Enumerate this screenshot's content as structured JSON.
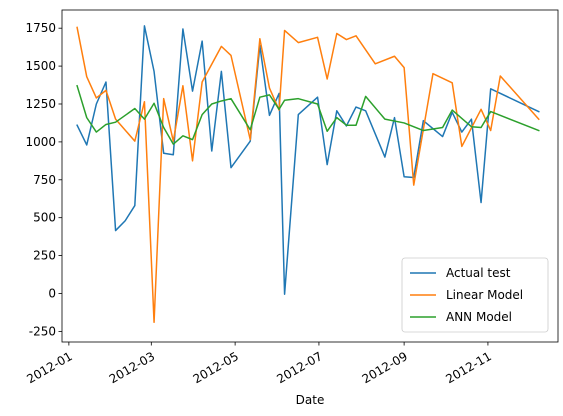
{
  "chart_data": {
    "type": "line",
    "title": "",
    "xlabel": "Date",
    "ylabel": "",
    "xlim": [
      "2011-12-27",
      "2012-12-22"
    ],
    "ylim": [
      -320,
      1870
    ],
    "yticks": [
      -250,
      0,
      250,
      500,
      750,
      1000,
      1250,
      1500,
      1750
    ],
    "xticks": [
      {
        "date": "2012-01-01",
        "label": "2012-01"
      },
      {
        "date": "2012-03-01",
        "label": "2012-03"
      },
      {
        "date": "2012-05-01",
        "label": "2012-05"
      },
      {
        "date": "2012-07-01",
        "label": "2012-07"
      },
      {
        "date": "2012-09-01",
        "label": "2012-09"
      },
      {
        "date": "2012-11-01",
        "label": "2012-11"
      }
    ],
    "grid": false,
    "legend": "lower-right",
    "series": [
      {
        "name": "Actual test",
        "color": "#1f77b4",
        "points": [
          [
            "2012-01-07",
            1110
          ],
          [
            "2012-01-14",
            980
          ],
          [
            "2012-01-21",
            1250
          ],
          [
            "2012-01-28",
            1395
          ],
          [
            "2012-02-04",
            415
          ],
          [
            "2012-02-11",
            480
          ],
          [
            "2012-02-18",
            580
          ],
          [
            "2012-02-25",
            1765
          ],
          [
            "2012-03-03",
            1465
          ],
          [
            "2012-03-10",
            925
          ],
          [
            "2012-03-17",
            915
          ],
          [
            "2012-03-24",
            1745
          ],
          [
            "2012-03-31",
            1335
          ],
          [
            "2012-04-07",
            1665
          ],
          [
            "2012-04-14",
            940
          ],
          [
            "2012-04-21",
            1465
          ],
          [
            "2012-04-28",
            830
          ],
          [
            "2012-05-12",
            1005
          ],
          [
            "2012-05-19",
            1635
          ],
          [
            "2012-05-26",
            1175
          ],
          [
            "2012-06-02",
            1320
          ],
          [
            "2012-06-06",
            -5
          ],
          [
            "2012-06-16",
            1180
          ],
          [
            "2012-06-30",
            1295
          ],
          [
            "2012-07-07",
            850
          ],
          [
            "2012-07-14",
            1205
          ],
          [
            "2012-07-21",
            1105
          ],
          [
            "2012-07-28",
            1230
          ],
          [
            "2012-08-04",
            1205
          ],
          [
            "2012-08-18",
            900
          ],
          [
            "2012-08-25",
            1160
          ],
          [
            "2012-09-01",
            770
          ],
          [
            "2012-09-08",
            765
          ],
          [
            "2012-09-15",
            1140
          ],
          [
            "2012-09-29",
            1035
          ],
          [
            "2012-10-06",
            1195
          ],
          [
            "2012-10-13",
            1065
          ],
          [
            "2012-10-20",
            1150
          ],
          [
            "2012-10-27",
            600
          ],
          [
            "2012-11-03",
            1350
          ],
          [
            "2012-12-08",
            1200
          ]
        ]
      },
      {
        "name": "Linear Model",
        "color": "#ff7f0e",
        "points": [
          [
            "2012-01-07",
            1755
          ],
          [
            "2012-01-14",
            1430
          ],
          [
            "2012-01-21",
            1290
          ],
          [
            "2012-01-28",
            1340
          ],
          [
            "2012-02-04",
            1150
          ],
          [
            "2012-02-18",
            1005
          ],
          [
            "2012-02-25",
            1265
          ],
          [
            "2012-03-03",
            -190
          ],
          [
            "2012-03-10",
            1285
          ],
          [
            "2012-03-17",
            1005
          ],
          [
            "2012-03-24",
            1370
          ],
          [
            "2012-03-31",
            875
          ],
          [
            "2012-04-07",
            1395
          ],
          [
            "2012-04-21",
            1630
          ],
          [
            "2012-04-28",
            1570
          ],
          [
            "2012-05-12",
            1015
          ],
          [
            "2012-05-19",
            1680
          ],
          [
            "2012-05-26",
            1355
          ],
          [
            "2012-06-02",
            1210
          ],
          [
            "2012-06-06",
            1735
          ],
          [
            "2012-06-16",
            1655
          ],
          [
            "2012-06-30",
            1690
          ],
          [
            "2012-07-07",
            1415
          ],
          [
            "2012-07-14",
            1715
          ],
          [
            "2012-07-21",
            1675
          ],
          [
            "2012-07-28",
            1700
          ],
          [
            "2012-08-11",
            1515
          ],
          [
            "2012-08-25",
            1565
          ],
          [
            "2012-09-01",
            1490
          ],
          [
            "2012-09-08",
            715
          ],
          [
            "2012-09-22",
            1450
          ],
          [
            "2012-10-06",
            1390
          ],
          [
            "2012-10-13",
            970
          ],
          [
            "2012-10-27",
            1215
          ],
          [
            "2012-11-03",
            1075
          ],
          [
            "2012-11-10",
            1435
          ],
          [
            "2012-12-08",
            1150
          ]
        ]
      },
      {
        "name": "ANN Model",
        "color": "#2ca02c",
        "points": [
          [
            "2012-01-07",
            1370
          ],
          [
            "2012-01-14",
            1160
          ],
          [
            "2012-01-21",
            1065
          ],
          [
            "2012-01-28",
            1115
          ],
          [
            "2012-02-04",
            1130
          ],
          [
            "2012-02-18",
            1220
          ],
          [
            "2012-02-25",
            1150
          ],
          [
            "2012-03-03",
            1255
          ],
          [
            "2012-03-10",
            1095
          ],
          [
            "2012-03-17",
            985
          ],
          [
            "2012-03-24",
            1040
          ],
          [
            "2012-03-31",
            1015
          ],
          [
            "2012-04-07",
            1180
          ],
          [
            "2012-04-14",
            1250
          ],
          [
            "2012-04-21",
            1270
          ],
          [
            "2012-04-28",
            1285
          ],
          [
            "2012-05-12",
            1080
          ],
          [
            "2012-05-19",
            1295
          ],
          [
            "2012-05-26",
            1310
          ],
          [
            "2012-06-02",
            1215
          ],
          [
            "2012-06-06",
            1275
          ],
          [
            "2012-06-16",
            1285
          ],
          [
            "2012-06-30",
            1250
          ],
          [
            "2012-07-07",
            1070
          ],
          [
            "2012-07-14",
            1160
          ],
          [
            "2012-07-21",
            1110
          ],
          [
            "2012-07-28",
            1110
          ],
          [
            "2012-08-04",
            1300
          ],
          [
            "2012-08-18",
            1150
          ],
          [
            "2012-09-01",
            1125
          ],
          [
            "2012-09-15",
            1075
          ],
          [
            "2012-09-29",
            1095
          ],
          [
            "2012-10-06",
            1210
          ],
          [
            "2012-10-13",
            1155
          ],
          [
            "2012-10-20",
            1100
          ],
          [
            "2012-10-27",
            1095
          ],
          [
            "2012-11-03",
            1200
          ],
          [
            "2012-12-08",
            1075
          ]
        ]
      }
    ]
  }
}
